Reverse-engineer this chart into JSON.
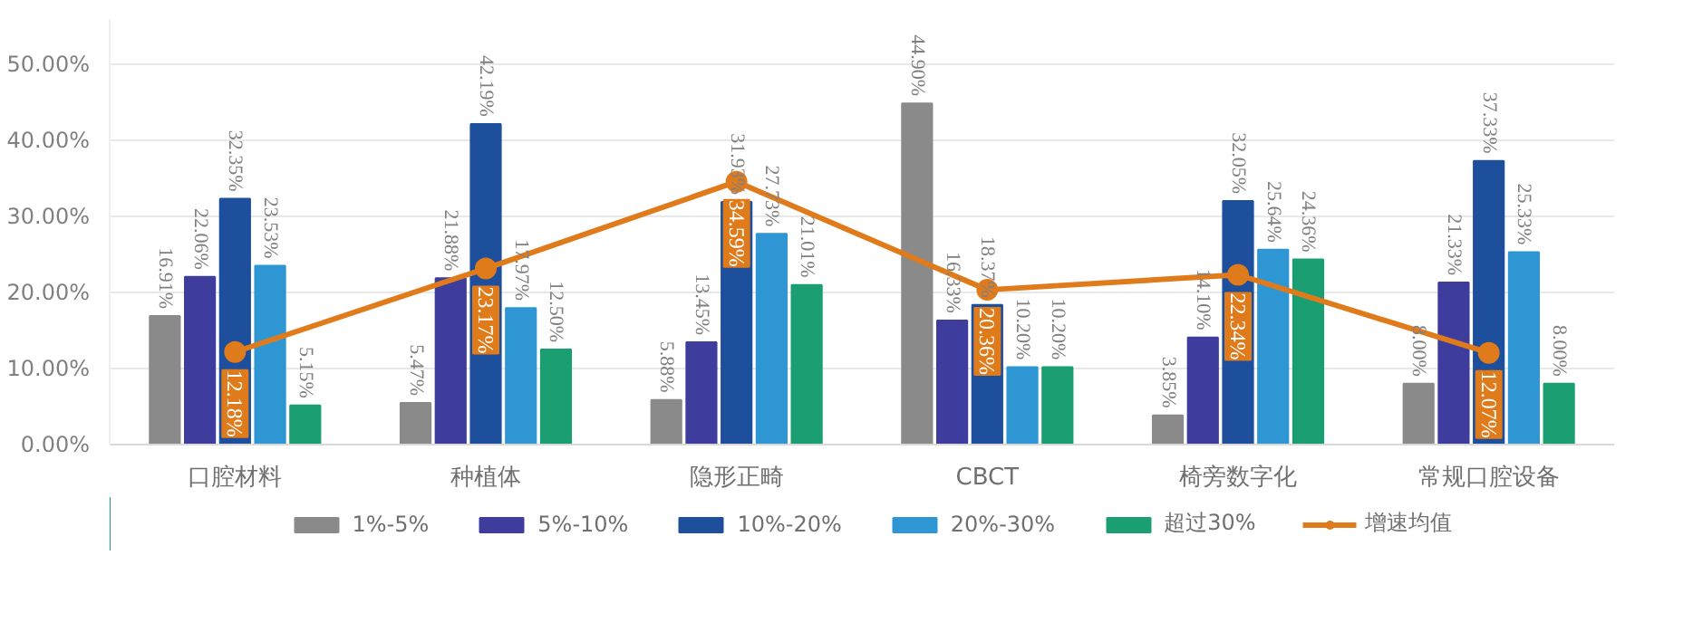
{
  "chart_data": {
    "type": "bar",
    "categories": [
      "口腔材料",
      "种植体",
      "隐形正畸",
      "CBCT",
      "椅旁数字化",
      "常规口腔设备"
    ],
    "series": [
      {
        "name": "1%-5%",
        "color": "#8a8a8a",
        "values": [
          16.91,
          5.47,
          5.88,
          44.9,
          3.85,
          8.0
        ],
        "value_labels": [
          "16.91%",
          "5.47%",
          "5.88%",
          "44.90%",
          "3.85%",
          "8.00%"
        ]
      },
      {
        "name": "5%-10%",
        "color": "#3e3c9c",
        "values": [
          22.06,
          21.88,
          13.45,
          16.33,
          14.1,
          21.33
        ],
        "value_labels": [
          "22.06%",
          "21.88%",
          "13.45%",
          "16.33%",
          "14.10%",
          "21.33%"
        ]
      },
      {
        "name": "10%-20%",
        "color": "#1d4f9c",
        "values": [
          32.35,
          42.19,
          31.93,
          18.37,
          32.05,
          37.33
        ],
        "value_labels": [
          "32.35%",
          "42.19%",
          "31.93%",
          "18.37%",
          "32.05%",
          "37.33%"
        ]
      },
      {
        "name": "20%-30%",
        "color": "#2f96d4",
        "values": [
          23.53,
          17.97,
          27.73,
          10.2,
          25.64,
          25.33
        ],
        "value_labels": [
          "23.53%",
          "17.97%",
          "27.73%",
          "10.20%",
          "25.64%",
          "25.33%"
        ]
      },
      {
        "name": "超过30%",
        "color": "#1a9e72",
        "values": [
          5.15,
          12.5,
          21.01,
          10.2,
          24.36,
          8.0
        ],
        "value_labels": [
          "5.15%",
          "12.50%",
          "21.01%",
          "10.20%",
          "24.36%",
          "8.00%"
        ]
      },
      {
        "name": "增速均值",
        "type": "line",
        "color": "#e07b1c",
        "marker": "circle",
        "values": [
          12.18,
          23.17,
          34.59,
          20.36,
          22.34,
          12.07
        ],
        "value_labels": [
          "12.18%",
          "23.17%",
          "34.59%",
          "20.36%",
          "22.34%",
          "12.07%"
        ]
      }
    ],
    "ylim": [
      0,
      56
    ],
    "yticks": [
      {
        "value": 0,
        "label": "0.00%"
      },
      {
        "value": 10,
        "label": "10.00%"
      },
      {
        "value": 20,
        "label": "20.00%"
      },
      {
        "value": 30,
        "label": "30.00%"
      },
      {
        "value": 40,
        "label": "40.00%"
      },
      {
        "value": 50,
        "label": "50.00%"
      }
    ],
    "grid": "y",
    "legend": "bottom"
  }
}
